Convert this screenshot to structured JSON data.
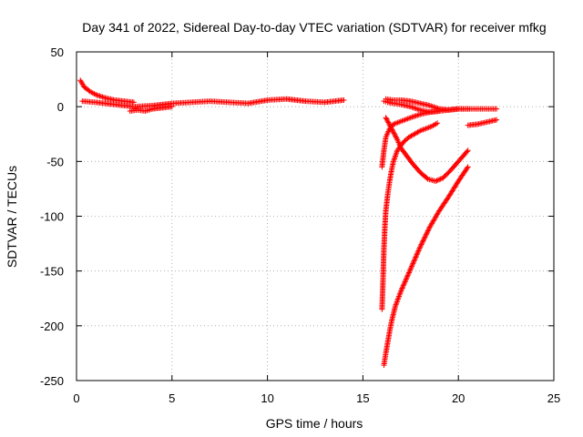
{
  "chart_data": {
    "type": "scatter",
    "title": "Day 341 of 2022, Sidereal Day-to-day VTEC variation (SDTVAR) for receiver mfkg",
    "xlabel": "GPS time / hours",
    "ylabel": "SDTVAR / TECUs",
    "xlim": [
      0,
      25
    ],
    "ylim": [
      -250,
      50
    ],
    "x_ticks": [
      0,
      5,
      10,
      15,
      20,
      25
    ],
    "y_ticks": [
      -250,
      -200,
      -150,
      -100,
      -50,
      0,
      50
    ],
    "grid": true,
    "marker": "+",
    "color": "#ff0000",
    "series": [
      {
        "x": [
          0.2,
          0.4,
          0.7,
          1.0,
          1.5,
          2.0,
          2.5,
          3.0
        ],
        "y": [
          24,
          18,
          14,
          11,
          8,
          6,
          5,
          4
        ]
      },
      {
        "x": [
          0.3,
          1.0,
          2.0,
          3.0,
          4.0,
          5.0,
          6.0,
          7.0,
          8.0,
          9.0,
          10.0,
          11.0,
          12.0,
          13.0,
          14.0
        ],
        "y": [
          5,
          4,
          2,
          0,
          1,
          3,
          4,
          5,
          4,
          3,
          6,
          7,
          5,
          4,
          6
        ]
      },
      {
        "x": [
          2.8,
          3.2,
          3.6,
          4.0,
          4.5,
          5.0
        ],
        "y": [
          -4,
          -3,
          -4,
          -2,
          -1,
          0
        ]
      },
      {
        "x": [
          16.0,
          16.05,
          16.1,
          16.15,
          16.2,
          16.3,
          16.4,
          16.5,
          16.6,
          16.7,
          16.8,
          17.0,
          17.2,
          17.4,
          17.6,
          17.8,
          18.0,
          18.3,
          18.6,
          18.9
        ],
        "y": [
          -185,
          -160,
          -130,
          -110,
          -95,
          -80,
          -68,
          -58,
          -50,
          -45,
          -40,
          -35,
          -31,
          -28,
          -26,
          -24,
          -22,
          -20,
          -18,
          -15
        ]
      },
      {
        "x": [
          16.1,
          16.2,
          16.3,
          16.4,
          16.5,
          16.7,
          17.0,
          17.5,
          18.0,
          18.5,
          19.0,
          19.5,
          20.0,
          20.5
        ],
        "y": [
          -236,
          -225,
          -215,
          -205,
          -196,
          -182,
          -168,
          -148,
          -128,
          -110,
          -95,
          -82,
          -68,
          -55
        ]
      },
      {
        "x": [
          16.0,
          16.1,
          16.2,
          16.4,
          16.6,
          16.9,
          17.2,
          17.5,
          18.0,
          18.5,
          19.0,
          19.5,
          20.0,
          20.5
        ],
        "y": [
          -55,
          -40,
          -28,
          -20,
          -16,
          -14,
          -12,
          -10,
          -7,
          -5,
          -4,
          -3,
          -2,
          -2
        ]
      },
      {
        "x": [
          16.1,
          16.3,
          16.6,
          17.0,
          17.5,
          18.0,
          18.5,
          19.0
        ],
        "y": [
          5,
          4,
          3,
          2,
          0,
          -3,
          -5,
          -4
        ]
      },
      {
        "x": [
          16.2,
          16.5,
          16.8,
          17.0,
          17.3,
          17.6,
          18.0,
          18.4,
          18.8,
          19.2,
          19.6,
          20.0,
          20.5
        ],
        "y": [
          -10,
          -20,
          -30,
          -38,
          -45,
          -52,
          -60,
          -66,
          -68,
          -65,
          -58,
          -50,
          -40
        ]
      },
      {
        "x": [
          16.2,
          16.6,
          17.0,
          17.5,
          18.0,
          18.5,
          19.0,
          19.5,
          20.0,
          20.5,
          21.0,
          21.5,
          22.0
        ],
        "y": [
          7,
          6,
          6,
          5,
          3,
          1,
          -2,
          -3,
          -2,
          -2,
          -2,
          -2,
          -2
        ]
      },
      {
        "x": [
          20.5,
          21.0,
          21.5,
          22.0
        ],
        "y": [
          -17,
          -16,
          -14,
          -12
        ]
      }
    ]
  }
}
